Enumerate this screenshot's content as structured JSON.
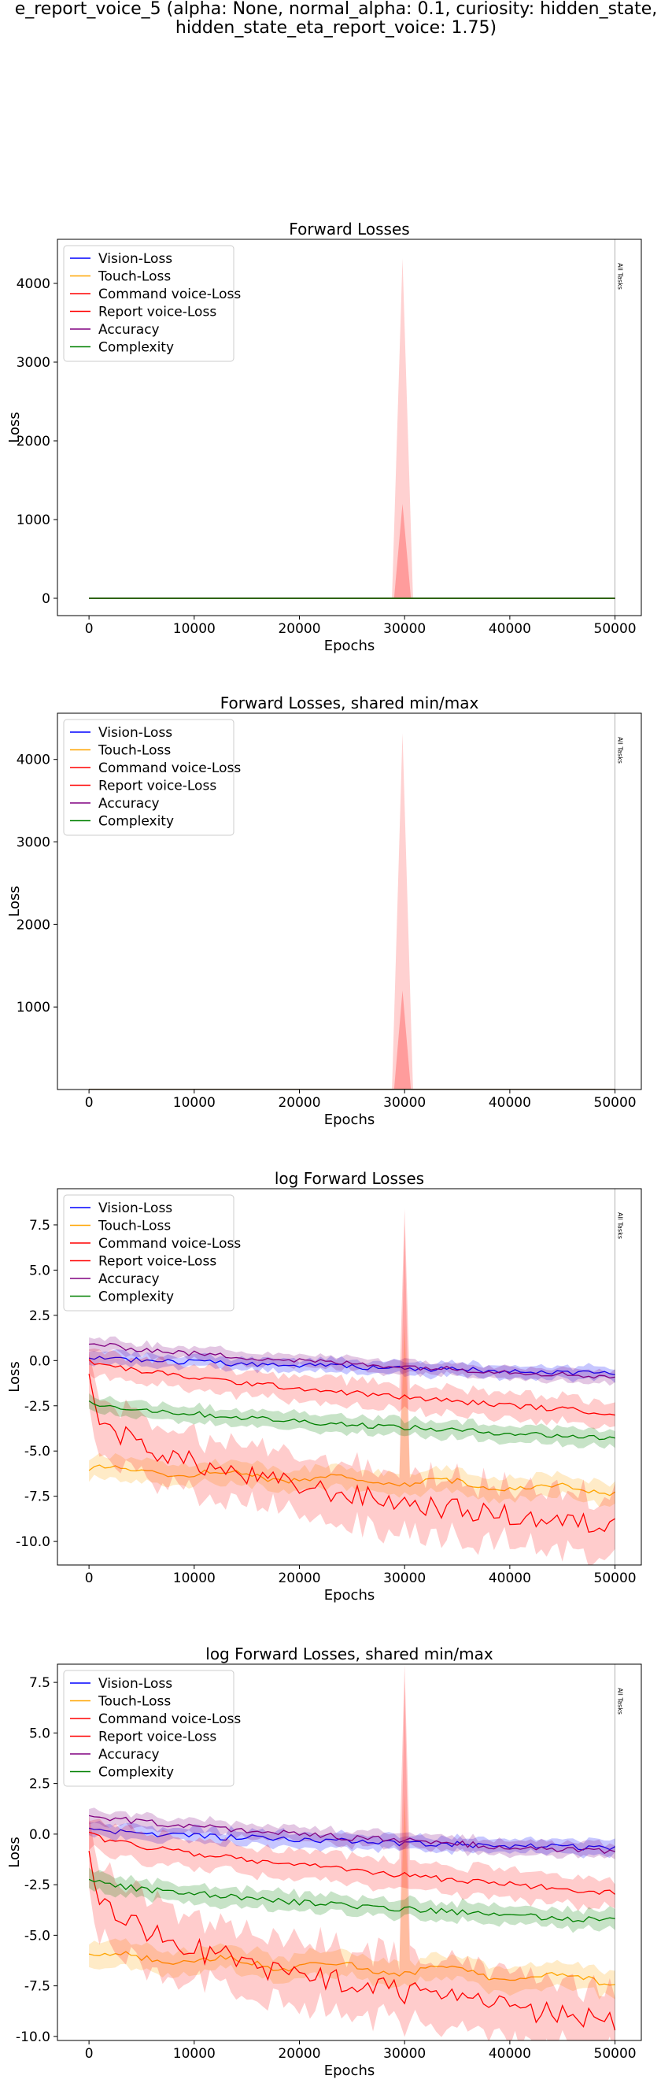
{
  "figure": {
    "suptitle_lines": [
      "e_report_voice_5 (alpha: None, normal_alpha: 0.1, curiosity: hidden_state,",
      "hidden_state_eta_report_voice: 1.75)"
    ]
  },
  "colors": {
    "vision": "#0000ff",
    "touch": "#ffa500",
    "command": "#ff0000",
    "report": "#ff0000",
    "accuracy": "#800080",
    "complexity": "#008000",
    "task_line": "#000000"
  },
  "chart_data": [
    {
      "type": "line",
      "title": "Forward Losses",
      "xlabel": "Epochs",
      "ylabel": "Loss",
      "xlim": [
        -3000,
        52500
      ],
      "ylim": [
        -220,
        4560
      ],
      "xticks": [
        0,
        10000,
        20000,
        30000,
        40000,
        50000
      ],
      "yticks": [
        0,
        1000,
        2000,
        3000,
        4000
      ],
      "scale": "linear",
      "legend_position": "upper left",
      "legend": [
        "Vision-Loss",
        "Touch-Loss",
        "Command voice-Loss",
        "Report voice-Loss",
        "Accuracy",
        "Complexity"
      ],
      "annotation": {
        "text": "All Tasks",
        "x": 50000
      },
      "spike": {
        "x": 29800,
        "command_peak": 4320,
        "report_peak": 1200
      },
      "series_values": "near zero (all series flattened at 0 on linear scale)"
    },
    {
      "type": "line",
      "title": "Forward Losses, shared min/max",
      "xlabel": "Epochs",
      "ylabel": "Loss",
      "xlim": [
        -3000,
        52500
      ],
      "ylim": [
        0,
        4560
      ],
      "xticks": [
        0,
        10000,
        20000,
        30000,
        40000,
        50000
      ],
      "yticks": [
        1000,
        2000,
        3000,
        4000
      ],
      "scale": "linear",
      "legend_position": "upper left",
      "legend": [
        "Vision-Loss",
        "Touch-Loss",
        "Command voice-Loss",
        "Report voice-Loss",
        "Accuracy",
        "Complexity"
      ],
      "annotation": {
        "text": "All Tasks",
        "x": 50000
      },
      "spike": {
        "x": 29800,
        "command_peak": 4320,
        "report_peak": 1200
      }
    },
    {
      "type": "line",
      "title": "log Forward Losses",
      "xlabel": "Epochs",
      "ylabel": "Loss",
      "xlim": [
        -3000,
        52500
      ],
      "ylim": [
        -11.3,
        9.5
      ],
      "xticks": [
        0,
        10000,
        20000,
        30000,
        40000,
        50000
      ],
      "yticks": [
        -10.0,
        -7.5,
        -5.0,
        -2.5,
        0.0,
        2.5,
        5.0,
        7.5
      ],
      "scale": "log-values",
      "legend_position": "upper left",
      "legend": [
        "Vision-Loss",
        "Touch-Loss",
        "Command voice-Loss",
        "Report voice-Loss",
        "Accuracy",
        "Complexity"
      ],
      "annotation": {
        "text": "All Tasks",
        "x": 50000
      },
      "series": [
        {
          "name": "Vision-Loss",
          "start": 0.2,
          "end": -0.7,
          "band": 0.35
        },
        {
          "name": "Touch-Loss",
          "start": -6.0,
          "end": -7.2,
          "band": 0.6
        },
        {
          "name": "Command voice-Loss",
          "start": 0.0,
          "end": -2.9,
          "band": 0.7
        },
        {
          "name": "Report voice-Loss",
          "start": -1.0,
          "end": -9.2,
          "band": 1.6
        },
        {
          "name": "Accuracy",
          "start": 1.0,
          "end": -0.9,
          "band": 0.35
        },
        {
          "name": "Complexity",
          "start": -2.3,
          "end": -4.3,
          "band": 0.45
        }
      ],
      "spike": {
        "x": 29800,
        "command_peak": 8.4,
        "touch_peak": 2.0
      }
    },
    {
      "type": "line",
      "title": "log Forward Losses, shared min/max",
      "xlabel": "Epochs",
      "ylabel": "Loss",
      "xlim": [
        -3000,
        52500
      ],
      "ylim": [
        -10.2,
        8.4
      ],
      "xticks": [
        0,
        10000,
        20000,
        30000,
        40000,
        50000
      ],
      "yticks": [
        -10.0,
        -7.5,
        -5.0,
        -2.5,
        0.0,
        2.5,
        5.0,
        7.5
      ],
      "scale": "log-values",
      "legend_position": "upper left",
      "legend": [
        "Vision-Loss",
        "Touch-Loss",
        "Command voice-Loss",
        "Report voice-Loss",
        "Accuracy",
        "Complexity"
      ],
      "annotation": {
        "text": "All Tasks",
        "x": 50000
      },
      "series": [
        {
          "name": "Vision-Loss",
          "start": 0.2,
          "end": -0.7,
          "band": 0.35
        },
        {
          "name": "Touch-Loss",
          "start": -6.0,
          "end": -7.2,
          "band": 0.6
        },
        {
          "name": "Command voice-Loss",
          "start": 0.0,
          "end": -2.9,
          "band": 0.7
        },
        {
          "name": "Report voice-Loss",
          "start": -1.0,
          "end": -9.2,
          "band": 1.6
        },
        {
          "name": "Accuracy",
          "start": 1.0,
          "end": -0.9,
          "band": 0.35
        },
        {
          "name": "Complexity",
          "start": -2.3,
          "end": -4.3,
          "band": 0.45
        }
      ],
      "spike": {
        "x": 29800,
        "command_peak": 8.4,
        "touch_peak": 2.0
      }
    }
  ]
}
